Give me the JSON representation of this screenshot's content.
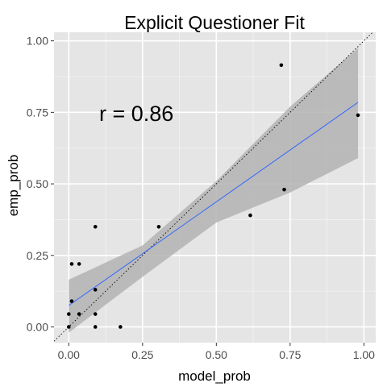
{
  "chart_data": {
    "type": "scatter",
    "title": "Explicit Questioner Fit",
    "xlabel": "model_prob",
    "ylabel": "emp_prob",
    "xlim": [
      -0.05,
      1.04
    ],
    "ylim": [
      -0.055,
      1.03
    ],
    "x_ticks": [
      0.0,
      0.25,
      0.5,
      0.75,
      1.0
    ],
    "y_ticks": [
      0.0,
      0.25,
      0.5,
      0.75,
      1.0
    ],
    "x_tick_labels": [
      "0.00",
      "0.25",
      "0.50",
      "0.75",
      "1.00"
    ],
    "y_tick_labels": [
      "0.00",
      "0.25",
      "0.50",
      "0.75",
      "1.00"
    ],
    "annotation": "r =  0.86",
    "grid": true,
    "points": [
      {
        "x": 0.0,
        "y": 0.0
      },
      {
        "x": 0.0,
        "y": 0.045
      },
      {
        "x": 0.01,
        "y": 0.09
      },
      {
        "x": 0.01,
        "y": 0.22
      },
      {
        "x": 0.035,
        "y": 0.045
      },
      {
        "x": 0.035,
        "y": 0.22
      },
      {
        "x": 0.09,
        "y": 0.0
      },
      {
        "x": 0.09,
        "y": 0.045
      },
      {
        "x": 0.09,
        "y": 0.13
      },
      {
        "x": 0.09,
        "y": 0.35
      },
      {
        "x": 0.175,
        "y": 0.0
      },
      {
        "x": 0.305,
        "y": 0.35
      },
      {
        "x": 0.615,
        "y": 0.39
      },
      {
        "x": 0.72,
        "y": 0.915
      },
      {
        "x": 0.73,
        "y": 0.48
      },
      {
        "x": 0.98,
        "y": 0.74
      }
    ],
    "fit_line": {
      "x": [
        0.0,
        0.98
      ],
      "y": [
        0.075,
        0.785
      ],
      "color": "#3366ff"
    },
    "confidence_band": {
      "x": [
        0.0,
        0.25,
        0.5,
        0.75,
        0.98
      ],
      "upper": [
        0.165,
        0.285,
        0.51,
        0.77,
        0.975
      ],
      "lower": [
        -0.02,
        0.175,
        0.365,
        0.47,
        0.59
      ]
    },
    "reference_line": {
      "type": "identity",
      "style": "dotted"
    },
    "colors": {
      "panel": "#e5e5e5",
      "grid_major": "#ffffff",
      "grid_minor": "#f2f2f2",
      "band": "#b3b3b3",
      "points": "#000000"
    }
  }
}
